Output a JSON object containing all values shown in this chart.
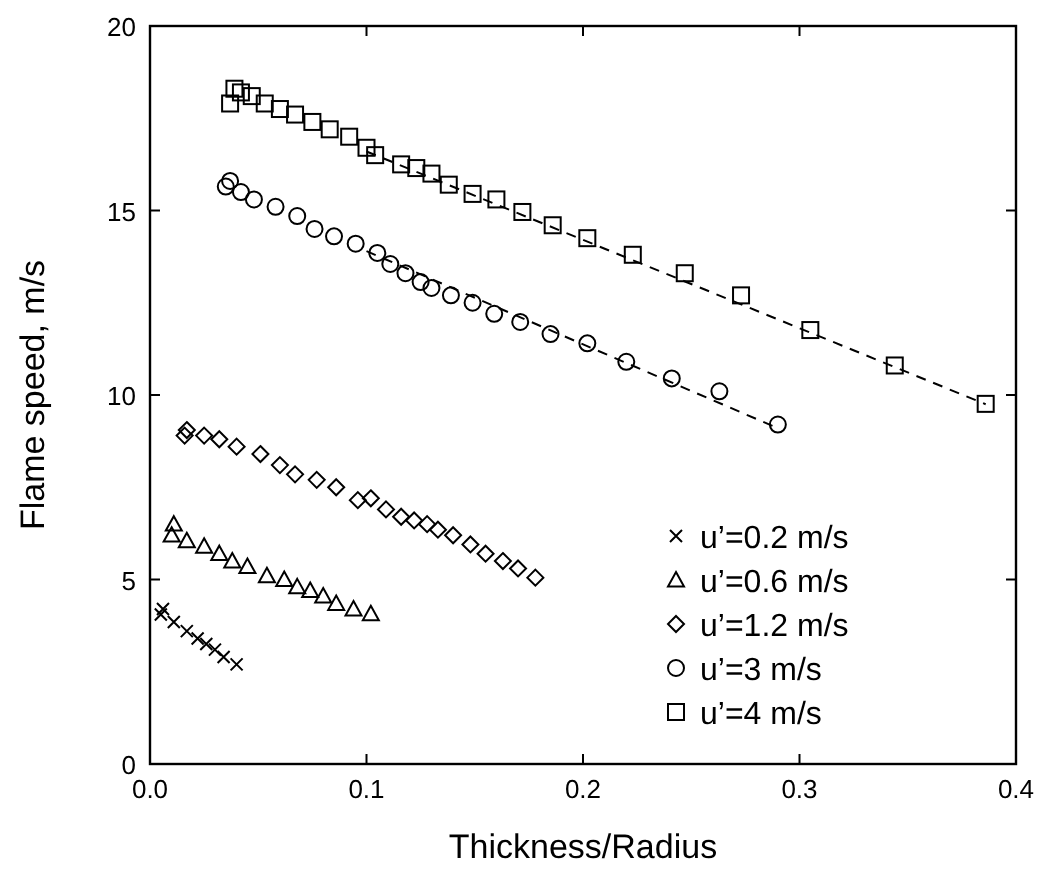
{
  "chart_data": {
    "type": "scatter",
    "xlabel": "Thickness/Radius",
    "ylabel": "Flame speed, m/s",
    "xlim": [
      0,
      0.4
    ],
    "ylim": [
      0,
      20
    ],
    "xticks": [
      {
        "value": 0,
        "label": "0.0"
      },
      0.1,
      0.2,
      0.3,
      0.4
    ],
    "yticks": [
      0,
      5,
      10,
      15,
      20
    ],
    "grid": false,
    "legend": "bottom right",
    "series": [
      {
        "name": "u’=0.2 m/s",
        "color": "#000000",
        "marker": "cross",
        "x": [
          0.005,
          0.006,
          0.011,
          0.017,
          0.022,
          0.026,
          0.03,
          0.034,
          0.04
        ],
        "values": [
          4.05,
          4.2,
          3.85,
          3.6,
          3.4,
          3.25,
          3.1,
          2.9,
          2.7
        ]
      },
      {
        "name": "u’=0.6 m/s",
        "color": "#000000",
        "marker": "triangle",
        "x": [
          0.01,
          0.011,
          0.017,
          0.025,
          0.032,
          0.038,
          0.045,
          0.054,
          0.062,
          0.068,
          0.074,
          0.08,
          0.086,
          0.094,
          0.102
        ],
        "values": [
          6.2,
          6.5,
          6.05,
          5.9,
          5.7,
          5.5,
          5.35,
          5.1,
          5.0,
          4.8,
          4.7,
          4.55,
          4.35,
          4.2,
          4.07
        ]
      },
      {
        "name": "u’=1.2 m/s",
        "color": "#000000",
        "marker": "diamond",
        "x": [
          0.016,
          0.017,
          0.025,
          0.032,
          0.04,
          0.051,
          0.06,
          0.067,
          0.077,
          0.086,
          0.096,
          0.102,
          0.109,
          0.116,
          0.122,
          0.128,
          0.133,
          0.14,
          0.148,
          0.155,
          0.163,
          0.17,
          0.178
        ],
        "values": [
          8.9,
          9.05,
          8.9,
          8.8,
          8.6,
          8.4,
          8.1,
          7.85,
          7.7,
          7.5,
          7.15,
          7.2,
          6.9,
          6.7,
          6.6,
          6.5,
          6.35,
          6.2,
          5.95,
          5.7,
          5.5,
          5.3,
          5.05
        ]
      },
      {
        "name": "u’=3 m/s",
        "color": "#000000",
        "marker": "circle",
        "x": [
          0.035,
          0.037,
          0.042,
          0.048,
          0.058,
          0.068,
          0.076,
          0.085,
          0.095,
          0.105,
          0.111,
          0.118,
          0.125,
          0.13,
          0.139,
          0.149,
          0.159,
          0.171,
          0.185,
          0.202,
          0.22,
          0.241,
          0.263,
          0.29
        ],
        "values": [
          15.65,
          15.8,
          15.5,
          15.3,
          15.1,
          14.85,
          14.5,
          14.3,
          14.1,
          13.85,
          13.55,
          13.3,
          13.06,
          12.9,
          12.7,
          12.5,
          12.2,
          11.98,
          11.65,
          11.4,
          10.9,
          10.45,
          10.1,
          9.2
        ]
      },
      {
        "name": "u’=4 m/s",
        "color": "#000000",
        "marker": "square",
        "x": [
          0.037,
          0.039,
          0.042,
          0.047,
          0.053,
          0.06,
          0.067,
          0.075,
          0.083,
          0.092,
          0.1,
          0.104,
          0.116,
          0.123,
          0.13,
          0.138,
          0.149,
          0.16,
          0.172,
          0.186,
          0.202,
          0.223,
          0.247,
          0.273,
          0.305,
          0.344,
          0.386
        ],
        "values": [
          17.9,
          18.3,
          18.2,
          18.1,
          17.9,
          17.75,
          17.6,
          17.4,
          17.2,
          17.0,
          16.7,
          16.5,
          16.25,
          16.15,
          16.0,
          15.7,
          15.45,
          15.3,
          14.96,
          14.6,
          14.25,
          13.8,
          13.3,
          12.7,
          11.76,
          10.8,
          9.76
        ]
      },
      {
        "type": "line",
        "color": "#000000",
        "line_style": "dashed",
        "marker": "none",
        "x": [
          0.1,
          0.29
        ],
        "values": [
          13.9,
          9.1
        ]
      },
      {
        "type": "line",
        "color": "#000000",
        "line_style": "dashed",
        "marker": "none",
        "x": [
          0.1,
          0.386
        ],
        "values": [
          16.6,
          9.75
        ]
      }
    ]
  }
}
